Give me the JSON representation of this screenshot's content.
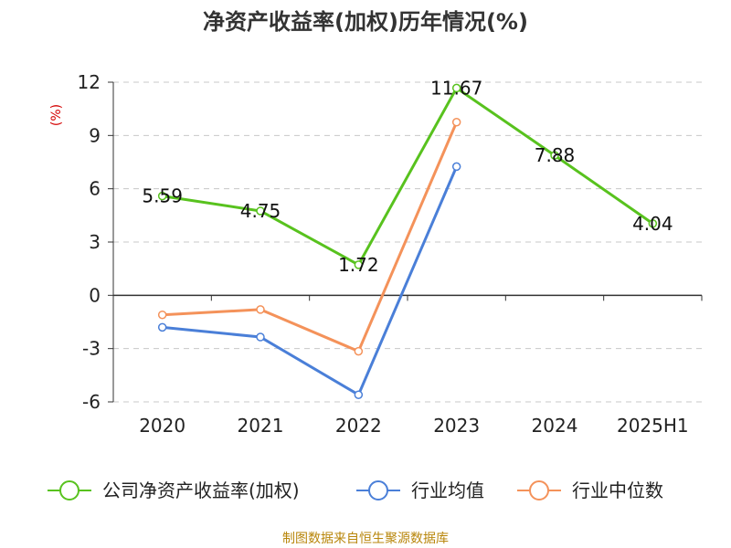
{
  "chart_data": {
    "type": "line",
    "title": "净资产收益率(加权)历年情况(%)",
    "ylabel": "(%)",
    "categories": [
      "2020",
      "2021",
      "2022",
      "2023",
      "2024",
      "2025H1"
    ],
    "ylim": [
      -6,
      12
    ],
    "yticks": [
      -6,
      -3,
      0,
      3,
      6,
      9,
      12
    ],
    "grid": true,
    "legend_position": "bottom",
    "series": [
      {
        "name": "公司净资产收益率(加权)",
        "color": "#58c21e",
        "values": [
          5.59,
          4.75,
          1.72,
          11.67,
          7.88,
          4.04
        ],
        "labels": [
          "5.59",
          "4.75",
          "1.72",
          "11.67",
          "7.88",
          "4.04"
        ]
      },
      {
        "name": "行业均值",
        "color": "#4a7fd8",
        "values": [
          -1.8,
          -2.35,
          -5.6,
          7.25,
          null,
          null
        ]
      },
      {
        "name": "行业中位数",
        "color": "#f4925a",
        "values": [
          -1.1,
          -0.8,
          -3.15,
          9.75,
          null,
          null
        ]
      }
    ]
  },
  "source": "制图数据来自恒生聚源数据库"
}
